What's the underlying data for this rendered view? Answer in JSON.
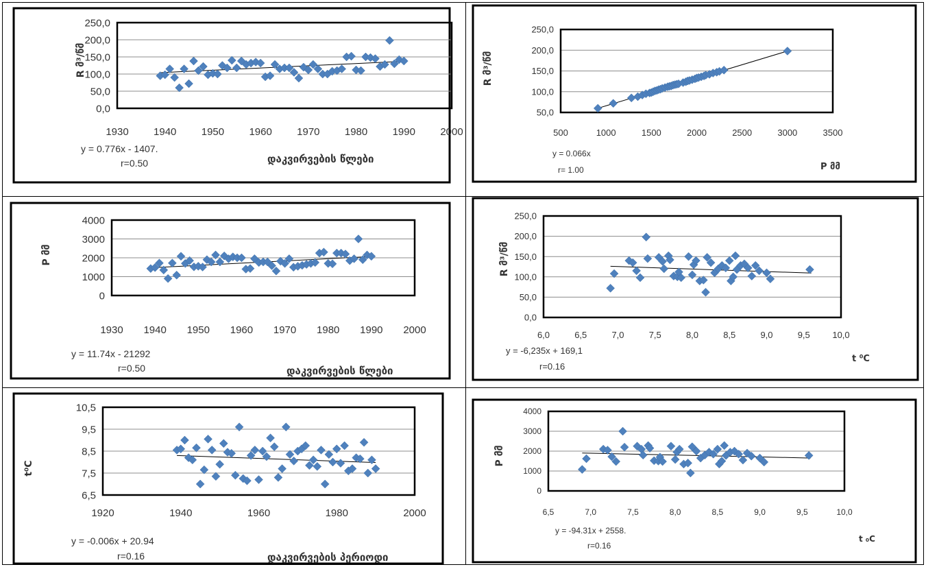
{
  "chart_data": [
    {
      "type": "scatter",
      "ylabel": "R მ³/წმ",
      "xlabel": "დაკვირვების წლები",
      "equation": "y = 0.776x - 1407.",
      "r_text": "r=0.50",
      "xlim": [
        1930,
        2000
      ],
      "ylim": [
        0,
        250
      ],
      "xticks": [
        "1930",
        "1940",
        "1950",
        "1960",
        "1970",
        "1980",
        "1990",
        "2000"
      ],
      "yticks": [
        "0,0",
        "50,0",
        "100,0",
        "150,0",
        "200,0",
        "250,0"
      ],
      "trend": [
        [
          1939,
          104.0
        ],
        [
          1990,
          137.2
        ]
      ],
      "x": [
        1939,
        1940,
        1941,
        1942,
        1943,
        1944,
        1945,
        1946,
        1947,
        1948,
        1949,
        1950,
        1951,
        1952,
        1953,
        1954,
        1955,
        1956,
        1957,
        1958,
        1959,
        1960,
        1961,
        1962,
        1963,
        1964,
        1965,
        1966,
        1967,
        1968,
        1969,
        1970,
        1971,
        1972,
        1973,
        1974,
        1975,
        1976,
        1977,
        1978,
        1979,
        1980,
        1981,
        1982,
        1983,
        1984,
        1985,
        1986,
        1987,
        1988,
        1989,
        1990
      ],
      "y": [
        95,
        98,
        115,
        90,
        60,
        115,
        72,
        138,
        110,
        122,
        98,
        102,
        100,
        125,
        118,
        140,
        118,
        138,
        128,
        132,
        135,
        132,
        92,
        95,
        128,
        115,
        118,
        118,
        105,
        88,
        120,
        112,
        128,
        115,
        100,
        100,
        108,
        110,
        115,
        150,
        152,
        112,
        110,
        150,
        148,
        145,
        122,
        128,
        198,
        130,
        142,
        138
      ]
    },
    {
      "type": "scatter",
      "ylabel": "R მ³/წმ",
      "xlabel": "P მმ",
      "equation": "y = 0.066x",
      "r_text": "r= 1.00",
      "xlim": [
        500,
        3500
      ],
      "ylim": [
        50,
        250
      ],
      "xticks": [
        "500",
        "1000",
        "1500",
        "2000",
        "2500",
        "3000",
        "3500"
      ],
      "yticks": [
        "50,0",
        "100,0",
        "150,0",
        "200,0",
        "250,0"
      ],
      "trend": [
        [
          900,
          59.4
        ],
        [
          3000,
          198
        ]
      ],
      "x": [
        910,
        1080,
        1280,
        1350,
        1400,
        1440,
        1480,
        1500,
        1520,
        1540,
        1560,
        1580,
        1600,
        1620,
        1650,
        1680,
        1700,
        1720,
        1740,
        1760,
        1780,
        1800,
        1850,
        1880,
        1900,
        1920,
        1950,
        1980,
        2000,
        2020,
        2050,
        2080,
        2100,
        2140,
        2180,
        2220,
        2250,
        2300,
        3000
      ],
      "y": [
        60,
        72,
        85,
        88,
        92,
        95,
        97,
        98,
        100,
        102,
        103,
        105,
        106,
        108,
        110,
        112,
        113,
        114,
        116,
        117,
        118,
        119,
        122,
        124,
        126,
        127,
        129,
        131,
        133,
        134,
        136,
        138,
        140,
        142,
        145,
        147,
        149,
        152,
        198
      ]
    },
    {
      "type": "scatter",
      "ylabel": "P მმ",
      "xlabel": "დაკვირვების წლები",
      "equation": "y = 11.74x - 21292",
      "r_text": "r=0.50",
      "xlim": [
        1930,
        2000
      ],
      "ylim": [
        0,
        4000
      ],
      "xticks": [
        "1930",
        "1940",
        "1950",
        "1960",
        "1970",
        "1980",
        "1990",
        "2000"
      ],
      "yticks": [
        "0",
        "1000",
        "2000",
        "3000",
        "4000"
      ],
      "trend": [
        [
          1939,
          1470
        ],
        [
          1990,
          2069
        ]
      ],
      "x": [
        1939,
        1940,
        1941,
        1942,
        1943,
        1944,
        1945,
        1946,
        1947,
        1948,
        1949,
        1950,
        1951,
        1952,
        1953,
        1954,
        1955,
        1956,
        1957,
        1958,
        1959,
        1960,
        1961,
        1962,
        1963,
        1964,
        1965,
        1966,
        1967,
        1968,
        1969,
        1970,
        1971,
        1972,
        1973,
        1974,
        1975,
        1976,
        1977,
        1978,
        1979,
        1980,
        1981,
        1982,
        1983,
        1984,
        1985,
        1986,
        1987,
        1988,
        1989,
        1990
      ],
      "y": [
        1430,
        1480,
        1720,
        1350,
        900,
        1720,
        1080,
        2080,
        1700,
        1850,
        1520,
        1550,
        1510,
        1900,
        1780,
        2150,
        1780,
        2100,
        1950,
        2050,
        2000,
        2000,
        1400,
        1430,
        1950,
        1750,
        1780,
        1780,
        1580,
        1300,
        1820,
        1700,
        1950,
        1500,
        1550,
        1600,
        1650,
        1700,
        1750,
        2250,
        2300,
        1700,
        1680,
        2250,
        2250,
        2200,
        1850,
        1950,
        3000,
        1900,
        2150,
        2080
      ]
    },
    {
      "type": "scatter",
      "ylabel": "R მ³/წმ",
      "xlabel": "t ⁰C",
      "equation": "y = -6,235x + 169,1",
      "r_text": "r=0.16",
      "xlim": [
        6.0,
        10.0
      ],
      "ylim": [
        0,
        250
      ],
      "xticks": [
        "6,0",
        "6,5",
        "7,0",
        "7,5",
        "8,0",
        "8,5",
        "9,0",
        "9,5",
        "10,0"
      ],
      "yticks": [
        "0,0",
        "50,0",
        "100,0",
        "150,0",
        "200,0",
        "250,0"
      ],
      "trend": [
        [
          6.9,
          126.1
        ],
        [
          9.6,
          109.3
        ]
      ],
      "x": [
        6.9,
        6.95,
        7.15,
        7.2,
        7.25,
        7.3,
        7.38,
        7.4,
        7.55,
        7.6,
        7.62,
        7.68,
        7.7,
        7.75,
        7.8,
        7.82,
        7.85,
        7.95,
        8.0,
        8.02,
        8.05,
        8.1,
        8.15,
        8.18,
        8.2,
        8.25,
        8.3,
        8.35,
        8.4,
        8.45,
        8.5,
        8.52,
        8.55,
        8.58,
        8.6,
        8.65,
        8.7,
        8.75,
        8.8,
        8.85,
        8.9,
        9.0,
        9.05,
        9.58
      ],
      "y": [
        72,
        108,
        140,
        135,
        115,
        98,
        198,
        145,
        148,
        138,
        120,
        152,
        142,
        102,
        100,
        112,
        98,
        150,
        105,
        130,
        140,
        90,
        92,
        62,
        148,
        135,
        110,
        120,
        128,
        122,
        140,
        90,
        100,
        152,
        118,
        128,
        132,
        122,
        102,
        128,
        115,
        110,
        95,
        118
      ]
    },
    {
      "type": "scatter",
      "ylabel": "t⁰C",
      "xlabel": "დაკვირვების პერიოდი",
      "equation": "y = -0.006x + 20.94",
      "r_text": "r=0.16",
      "xlim": [
        1920,
        2000
      ],
      "ylim": [
        6.5,
        10.5
      ],
      "xticks": [
        "1920",
        "1940",
        "1960",
        "1980",
        "2000"
      ],
      "yticks": [
        "6,5",
        "7,5",
        "8,5",
        "9,5",
        "10,5"
      ],
      "trend": [
        [
          1939,
          8.3
        ],
        [
          1990,
          7.98
        ]
      ],
      "x": [
        1939,
        1940,
        1941,
        1942,
        1943,
        1944,
        1945,
        1946,
        1947,
        1948,
        1949,
        1950,
        1951,
        1952,
        1953,
        1954,
        1955,
        1956,
        1957,
        1958,
        1959,
        1960,
        1961,
        1962,
        1963,
        1964,
        1965,
        1966,
        1967,
        1968,
        1969,
        1970,
        1971,
        1972,
        1973,
        1974,
        1975,
        1976,
        1977,
        1978,
        1979,
        1980,
        1981,
        1982,
        1983,
        1984,
        1985,
        1986,
        1987,
        1988,
        1989,
        1990
      ],
      "y": [
        8.55,
        8.6,
        9.0,
        8.2,
        8.1,
        8.65,
        7.0,
        7.65,
        9.05,
        8.55,
        7.35,
        7.9,
        8.85,
        8.45,
        8.4,
        7.4,
        9.6,
        7.25,
        7.15,
        8.3,
        8.55,
        7.2,
        8.5,
        8.25,
        9.1,
        8.7,
        7.3,
        7.7,
        9.6,
        8.35,
        8.05,
        8.5,
        8.6,
        8.75,
        7.85,
        8.1,
        7.8,
        8.55,
        7.0,
        8.35,
        8.0,
        8.6,
        7.95,
        8.75,
        7.6,
        7.7,
        8.2,
        8.15,
        8.9,
        7.5,
        8.1,
        7.7
      ]
    },
    {
      "type": "scatter",
      "ylabel": "P მმ",
      "xlabel": "t ₀C",
      "equation": "y = -94.31x + 2558.",
      "r_text": "r=0.16",
      "xlim": [
        6.5,
        10.0
      ],
      "ylim": [
        0,
        4000
      ],
      "xticks": [
        "6,5",
        "7,0",
        "7,5",
        "8,0",
        "8,5",
        "9,0",
        "9,5",
        "10,0"
      ],
      "yticks": [
        "0",
        "1000",
        "2000",
        "3000",
        "4000"
      ],
      "trend": [
        [
          6.9,
          1907
        ],
        [
          9.6,
          1653
        ]
      ],
      "x": [
        6.9,
        6.95,
        7.15,
        7.2,
        7.25,
        7.3,
        7.38,
        7.4,
        7.55,
        7.6,
        7.62,
        7.68,
        7.7,
        7.75,
        7.8,
        7.82,
        7.85,
        7.95,
        8.0,
        8.02,
        8.05,
        8.1,
        8.15,
        8.18,
        8.2,
        8.25,
        8.3,
        8.35,
        8.4,
        8.45,
        8.5,
        8.52,
        8.55,
        8.58,
        8.6,
        8.65,
        8.7,
        8.75,
        8.8,
        8.85,
        8.9,
        9.0,
        9.05,
        9.58
      ],
      "y": [
        1080,
        1620,
        2100,
        2050,
        1720,
        1480,
        3000,
        2200,
        2250,
        2100,
        1800,
        2280,
        2150,
        1520,
        1500,
        1700,
        1480,
        2250,
        1580,
        1950,
        2100,
        1350,
        1400,
        900,
        2220,
        2000,
        1650,
        1800,
        1950,
        1850,
        2100,
        1350,
        1500,
        2280,
        1780,
        1950,
        2000,
        1850,
        1550,
        1900,
        1750,
        1650,
        1450,
        1780
      ]
    }
  ]
}
